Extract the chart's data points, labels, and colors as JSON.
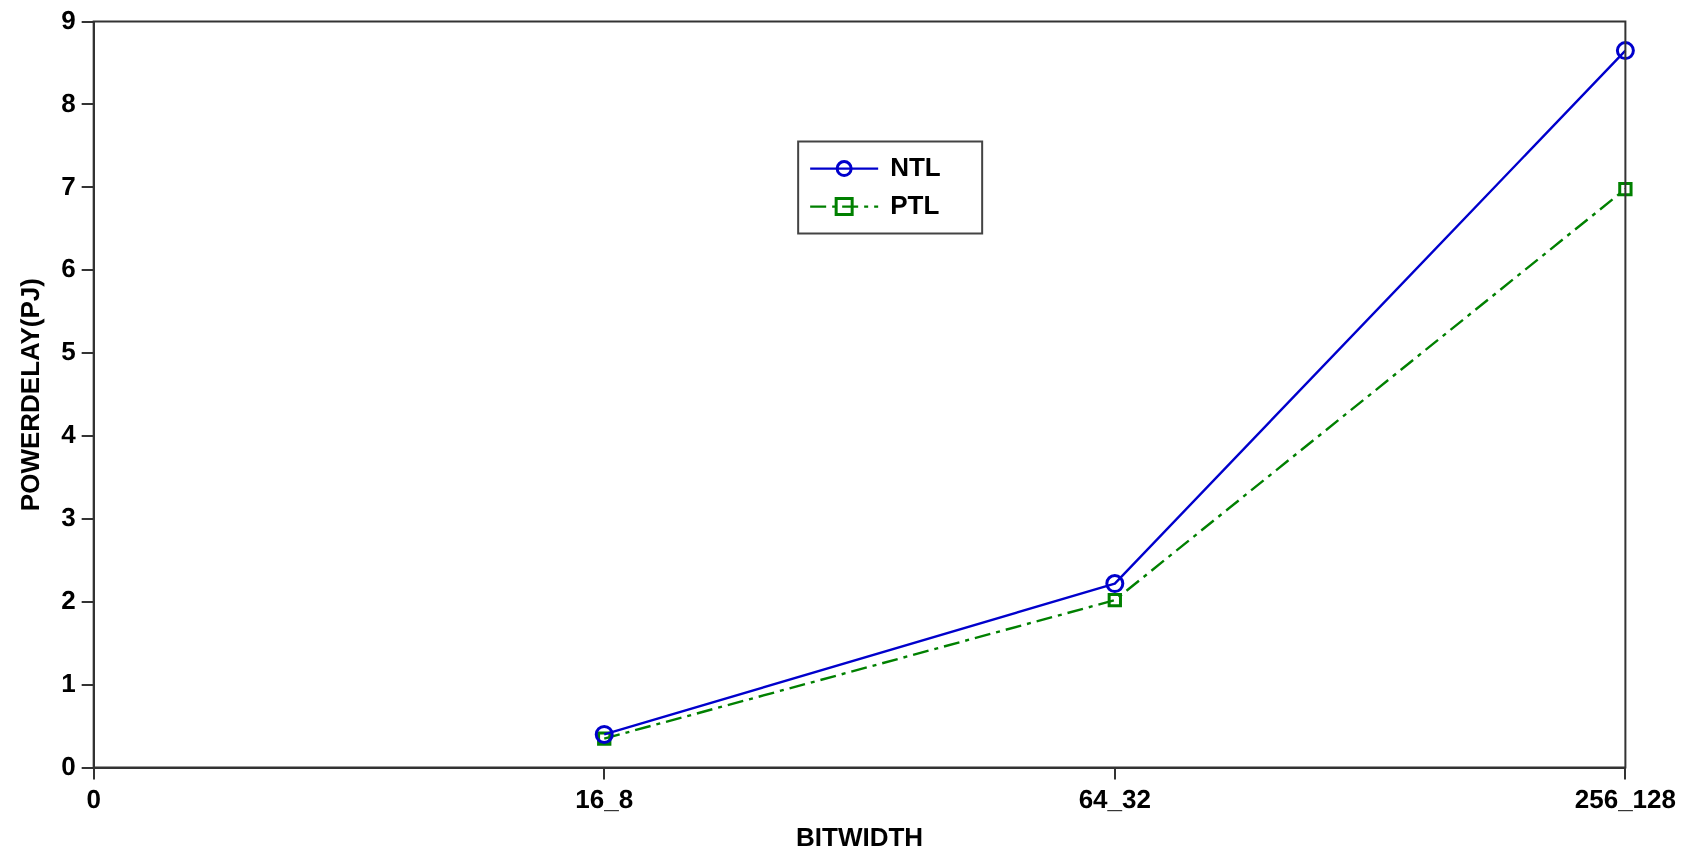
{
  "chart_data": {
    "type": "line",
    "xlabel": "BITWIDTH",
    "ylabel": "POWERDELAY(PJ)",
    "categories": [
      "0",
      "16_8",
      "64_32",
      "256_128"
    ],
    "ylim": [
      0,
      9
    ],
    "yticks": [
      0,
      1,
      2,
      3,
      4,
      5,
      6,
      7,
      8,
      9
    ],
    "series": [
      {
        "name": "NTL",
        "color": "#0000cc",
        "values": [
          null,
          0.4,
          2.22,
          8.65
        ],
        "marker": "circle",
        "line_style": "solid"
      },
      {
        "name": "PTL",
        "color": "#008000",
        "values": [
          null,
          0.35,
          2.02,
          6.98
        ],
        "marker": "square",
        "line_style": "dashed"
      }
    ],
    "grid": false,
    "legend": "top"
  }
}
